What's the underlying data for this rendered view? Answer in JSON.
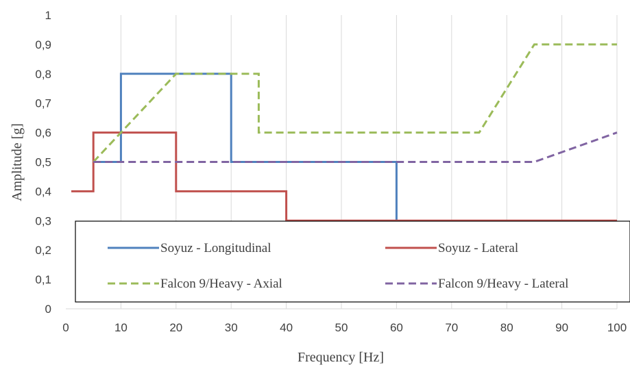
{
  "chart_data": {
    "type": "line",
    "title": "",
    "xlabel": "Frequency [Hz]",
    "ylabel": "Amplitude [g]",
    "xlim": [
      0,
      100
    ],
    "ylim": [
      0,
      1
    ],
    "xticks": [
      "0",
      "10",
      "20",
      "30",
      "40",
      "50",
      "60",
      "70",
      "80",
      "90",
      "100"
    ],
    "yticks": [
      "0",
      "0,1",
      "0,2",
      "0,3",
      "0,4",
      "0,5",
      "0,6",
      "0,7",
      "0,8",
      "0,9",
      "1"
    ],
    "grid": "vertical",
    "legend_position": "bottom, inside plot",
    "series": [
      {
        "name": "Soyuz - Longitudinal",
        "color": "#4F81BD",
        "dash": "solid",
        "points": [
          [
            5,
            0.5
          ],
          [
            10,
            0.5
          ],
          [
            10,
            0.8
          ],
          [
            30,
            0.8
          ],
          [
            30,
            0.5
          ],
          [
            60,
            0.5
          ],
          [
            60,
            0.3
          ]
        ]
      },
      {
        "name": "Soyuz - Lateral",
        "color": "#C0504D",
        "dash": "solid",
        "points": [
          [
            1,
            0.4
          ],
          [
            5,
            0.4
          ],
          [
            5,
            0.6
          ],
          [
            20,
            0.6
          ],
          [
            20,
            0.4
          ],
          [
            40,
            0.4
          ],
          [
            40,
            0.3
          ],
          [
            100,
            0.3
          ]
        ]
      },
      {
        "name": "Falcon 9/Heavy - Axial",
        "color": "#9BBB59",
        "dash": "dashed",
        "points": [
          [
            5,
            0.5
          ],
          [
            20,
            0.8
          ],
          [
            35,
            0.8
          ],
          [
            35,
            0.6
          ],
          [
            75,
            0.6
          ],
          [
            85,
            0.9
          ],
          [
            100,
            0.9
          ]
        ]
      },
      {
        "name": "Falcon 9/Heavy - Lateral",
        "color": "#8064A2",
        "dash": "dashed",
        "points": [
          [
            5,
            0.5
          ],
          [
            85,
            0.5
          ],
          [
            100,
            0.6
          ]
        ]
      }
    ]
  }
}
